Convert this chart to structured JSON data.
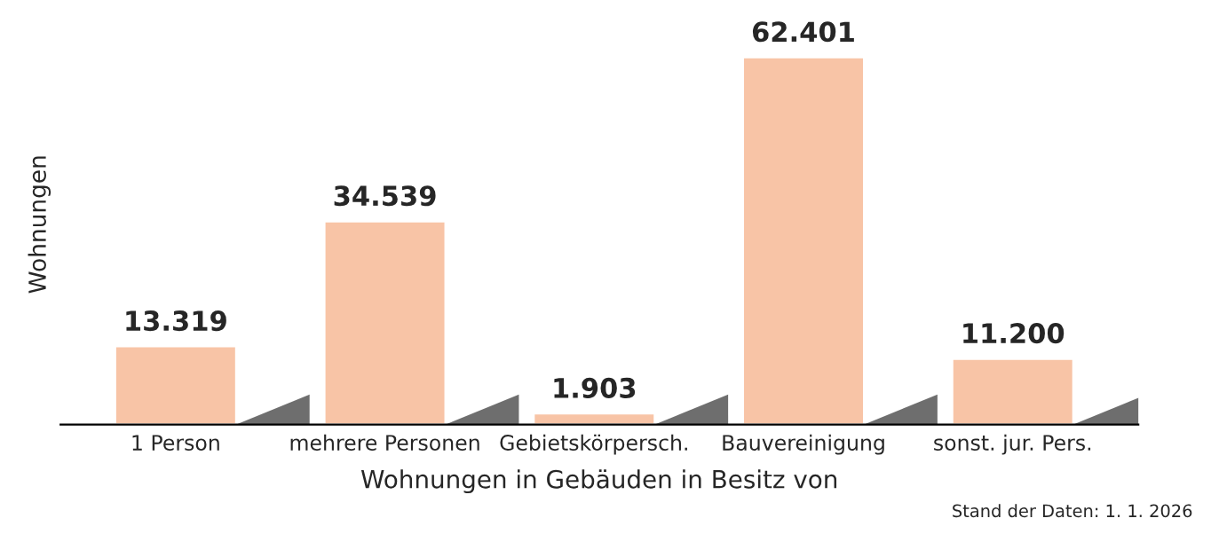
{
  "chart_data": {
    "type": "bar",
    "categories": [
      "1 Person",
      "mehrere Personen",
      "Gebietskörpersch.",
      "Bauvereinigung",
      "sonst. jur. Pers."
    ],
    "values": [
      13319,
      34539,
      1903,
      62401,
      11200
    ],
    "value_labels": [
      "13.319",
      "34.539",
      "1.903",
      "62.401",
      "11.200"
    ],
    "color": "#f8c4a6",
    "xlabel": "Wohnungen in Gebäuden in Besitz von",
    "ylabel": "Wohnungen",
    "annotations": [
      "Stand der Daten: 1. 1. 2026"
    ]
  }
}
